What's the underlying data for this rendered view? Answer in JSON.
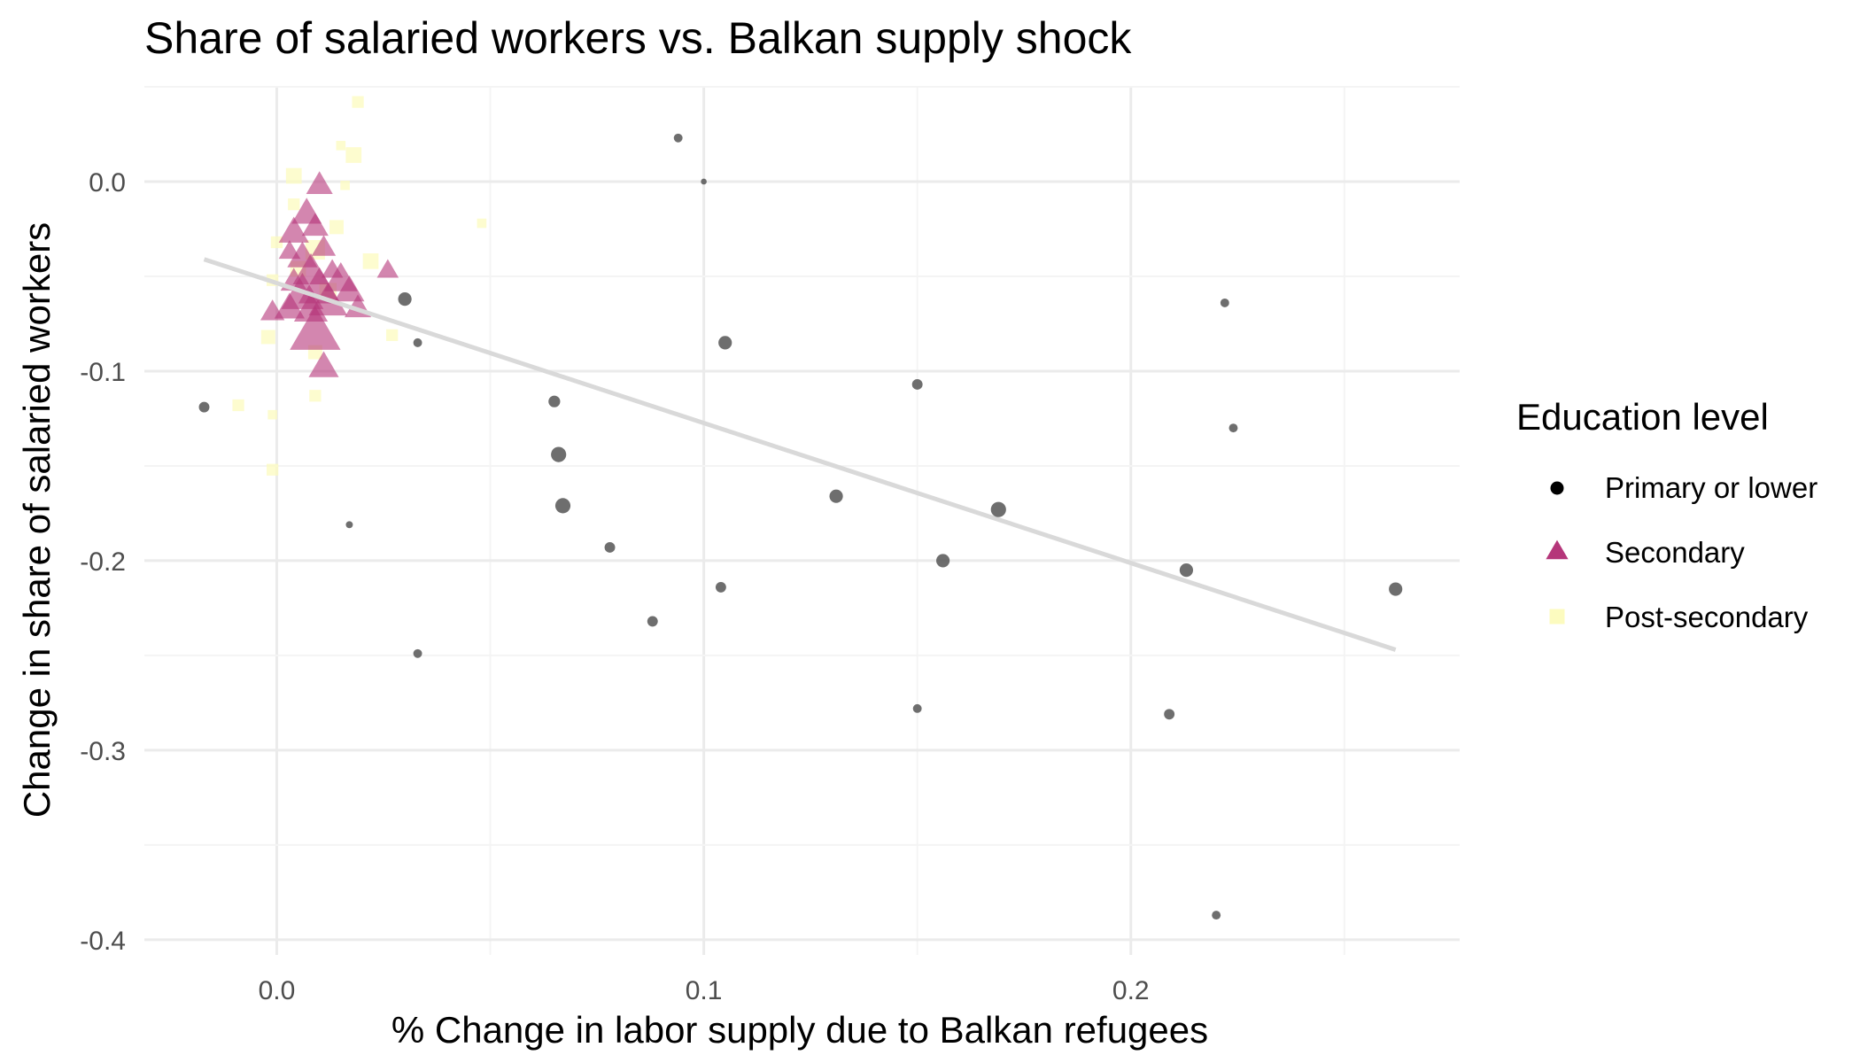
{
  "chart_data": {
    "type": "scatter",
    "title": "Share of salaried workers vs. Balkan supply shock",
    "xlabel": "% Change in labor supply due to Balkan refugees",
    "ylabel": "Change in share of salaried workers",
    "xlim": [
      -0.031,
      0.277
    ],
    "ylim": [
      -0.408,
      0.05
    ],
    "x_ticks": [
      0.0,
      0.1,
      0.2
    ],
    "x_tick_labels": [
      "0.0",
      "0.1",
      "0.2"
    ],
    "y_ticks": [
      0.0,
      -0.1,
      -0.2,
      -0.3,
      -0.4
    ],
    "y_tick_labels": [
      "0.0",
      "-0.1",
      "-0.2",
      "-0.3",
      "-0.4"
    ],
    "grid": true,
    "legend": {
      "title": "Education level",
      "placement": "right",
      "entries": [
        "Primary or lower",
        "Secondary",
        "Post-secondary"
      ]
    },
    "trend_line": {
      "x": [
        -0.017,
        0.262
      ],
      "y": [
        -0.041,
        -0.247
      ],
      "color": "#d9d9d9"
    },
    "series": [
      {
        "name": "Primary or lower",
        "shape": "circle",
        "color": "#555555",
        "points": [
          {
            "x": 0.094,
            "y": 0.023,
            "size": 1.5
          },
          {
            "x": 0.1,
            "y": 0.0,
            "size": 1.0
          },
          {
            "x": 0.03,
            "y": -0.062,
            "size": 2.3
          },
          {
            "x": 0.033,
            "y": -0.085,
            "size": 1.5
          },
          {
            "x": 0.105,
            "y": -0.085,
            "size": 2.3
          },
          {
            "x": -0.017,
            "y": -0.119,
            "size": 1.8
          },
          {
            "x": 0.065,
            "y": -0.116,
            "size": 2.0
          },
          {
            "x": 0.066,
            "y": -0.144,
            "size": 2.6
          },
          {
            "x": 0.067,
            "y": -0.171,
            "size": 2.6
          },
          {
            "x": 0.017,
            "y": -0.181,
            "size": 1.2
          },
          {
            "x": 0.078,
            "y": -0.193,
            "size": 1.8
          },
          {
            "x": 0.088,
            "y": -0.232,
            "size": 1.8
          },
          {
            "x": 0.033,
            "y": -0.249,
            "size": 1.5
          },
          {
            "x": 0.104,
            "y": -0.214,
            "size": 1.8
          },
          {
            "x": 0.131,
            "y": -0.166,
            "size": 2.3
          },
          {
            "x": 0.15,
            "y": -0.107,
            "size": 1.8
          },
          {
            "x": 0.15,
            "y": -0.278,
            "size": 1.5
          },
          {
            "x": 0.156,
            "y": -0.2,
            "size": 2.3
          },
          {
            "x": 0.169,
            "y": -0.173,
            "size": 2.6
          },
          {
            "x": 0.213,
            "y": -0.205,
            "size": 2.3
          },
          {
            "x": 0.209,
            "y": -0.281,
            "size": 1.8
          },
          {
            "x": 0.222,
            "y": -0.064,
            "size": 1.5
          },
          {
            "x": 0.224,
            "y": -0.13,
            "size": 1.5
          },
          {
            "x": 0.22,
            "y": -0.387,
            "size": 1.5
          },
          {
            "x": 0.262,
            "y": -0.215,
            "size": 2.3
          }
        ]
      },
      {
        "name": "Secondary",
        "shape": "triangle",
        "color": "#b5367a",
        "points": [
          {
            "x": 0.01,
            "y": -0.002,
            "size": 2.2
          },
          {
            "x": 0.007,
            "y": -0.017,
            "size": 2.5
          },
          {
            "x": 0.004,
            "y": -0.027,
            "size": 2.5
          },
          {
            "x": 0.009,
            "y": -0.024,
            "size": 2.2
          },
          {
            "x": 0.003,
            "y": -0.037,
            "size": 1.8
          },
          {
            "x": 0.006,
            "y": -0.04,
            "size": 2.5
          },
          {
            "x": 0.011,
            "y": -0.035,
            "size": 2.0
          },
          {
            "x": 0.008,
            "y": -0.048,
            "size": 3.0
          },
          {
            "x": 0.004,
            "y": -0.053,
            "size": 2.2
          },
          {
            "x": 0.013,
            "y": -0.047,
            "size": 1.8
          },
          {
            "x": 0.006,
            "y": -0.06,
            "size": 3.5
          },
          {
            "x": 0.01,
            "y": -0.057,
            "size": 3.5
          },
          {
            "x": 0.015,
            "y": -0.052,
            "size": 2.8
          },
          {
            "x": 0.017,
            "y": -0.058,
            "size": 2.5
          },
          {
            "x": 0.012,
            "y": -0.064,
            "size": 3.2
          },
          {
            "x": 0.008,
            "y": -0.068,
            "size": 2.8
          },
          {
            "x": 0.003,
            "y": -0.067,
            "size": 2.5
          },
          {
            "x": -0.001,
            "y": -0.069,
            "size": 2.0
          },
          {
            "x": 0.019,
            "y": -0.067,
            "size": 2.2
          },
          {
            "x": 0.026,
            "y": -0.047,
            "size": 1.8
          },
          {
            "x": 0.009,
            "y": -0.08,
            "size": 4.2
          },
          {
            "x": 0.011,
            "y": -0.098,
            "size": 2.5
          }
        ]
      },
      {
        "name": "Post-secondary",
        "shape": "square",
        "color": "#fcfbbf",
        "points": [
          {
            "x": 0.019,
            "y": 0.042,
            "size": 1.5
          },
          {
            "x": 0.015,
            "y": 0.019,
            "size": 1.2
          },
          {
            "x": 0.018,
            "y": 0.014,
            "size": 2.0
          },
          {
            "x": 0.004,
            "y": 0.003,
            "size": 2.0
          },
          {
            "x": 0.016,
            "y": -0.002,
            "size": 1.2
          },
          {
            "x": 0.004,
            "y": -0.012,
            "size": 1.5
          },
          {
            "x": 0.048,
            "y": -0.022,
            "size": 1.2
          },
          {
            "x": 0.014,
            "y": -0.024,
            "size": 1.8
          },
          {
            "x": 0.0,
            "y": -0.032,
            "size": 1.5
          },
          {
            "x": 0.009,
            "y": -0.036,
            "size": 2.5
          },
          {
            "x": 0.022,
            "y": -0.042,
            "size": 2.0
          },
          {
            "x": 0.005,
            "y": -0.046,
            "size": 2.0
          },
          {
            "x": -0.001,
            "y": -0.052,
            "size": 1.5
          },
          {
            "x": 0.012,
            "y": -0.058,
            "size": 2.2
          },
          {
            "x": -0.002,
            "y": -0.082,
            "size": 1.8
          },
          {
            "x": 0.027,
            "y": -0.081,
            "size": 1.5
          },
          {
            "x": 0.009,
            "y": -0.09,
            "size": 1.8
          },
          {
            "x": 0.009,
            "y": -0.113,
            "size": 1.5
          },
          {
            "x": -0.009,
            "y": -0.118,
            "size": 1.5
          },
          {
            "x": -0.001,
            "y": -0.123,
            "size": 1.2
          },
          {
            "x": -0.001,
            "y": -0.152,
            "size": 1.5
          }
        ]
      }
    ]
  }
}
